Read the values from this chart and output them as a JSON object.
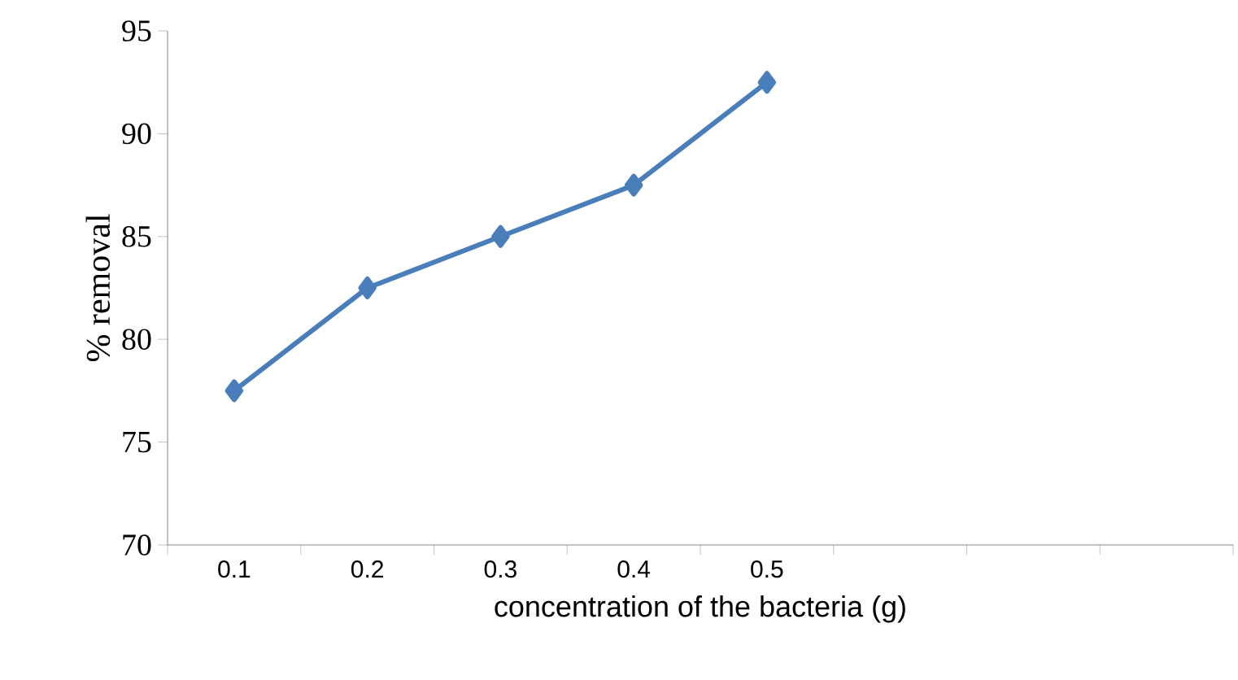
{
  "chart_data": {
    "type": "line",
    "xlabel": "concentration of the bacteria (g)",
    "ylabel": "% removal",
    "categories": [
      "0.1",
      "0.2",
      "0.3",
      "0.4",
      "0.5",
      null,
      null,
      null
    ],
    "series": [
      {
        "color": "#4a7ebb",
        "values": [
          77.5,
          82.5,
          85,
          87.5,
          92.5,
          null,
          null,
          null
        ]
      }
    ],
    "ylim": [
      70,
      95
    ],
    "yticks": [
      70,
      75,
      80,
      85,
      90,
      95
    ],
    "marker": "diamond",
    "line_style": "solid"
  }
}
